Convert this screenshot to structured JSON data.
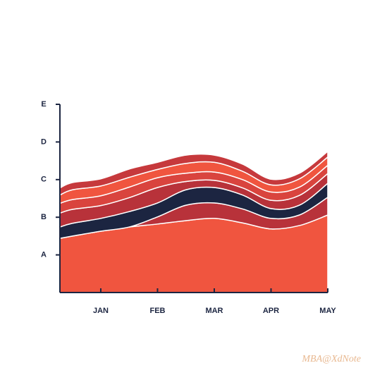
{
  "chart_data": {
    "type": "stacked_area",
    "x": [
      0.28,
      0.5,
      1,
      1.5,
      2,
      2.5,
      3,
      3.5,
      4,
      4.5,
      5
    ],
    "xlim": [
      0.28,
      5
    ],
    "xticks": [
      {
        "value": 1,
        "label": "JAN"
      },
      {
        "value": 2,
        "label": "FEB"
      },
      {
        "value": 3,
        "label": "MAR"
      },
      {
        "value": 4,
        "label": "APR"
      },
      {
        "value": 5,
        "label": "MAY"
      }
    ],
    "ylim": [
      0,
      5
    ],
    "yticks": [
      {
        "value": 1,
        "label": "A"
      },
      {
        "value": 2,
        "label": "B"
      },
      {
        "value": 3,
        "label": "C"
      },
      {
        "value": 4,
        "label": "D"
      },
      {
        "value": 5,
        "label": "E"
      }
    ],
    "series": [
      {
        "color": "#f0553f",
        "values": [
          1.44,
          1.5,
          1.63,
          1.74,
          1.82,
          1.91,
          1.97,
          1.85,
          1.69,
          1.78,
          2.06
        ]
      },
      {
        "color": "#b8323a",
        "values": [
          0,
          0,
          0,
          0,
          0.19,
          0.41,
          0.41,
          0.37,
          0.28,
          0.28,
          0.47
        ]
      },
      {
        "color": "#1c2541",
        "values": [
          0.3,
          0.34,
          0.34,
          0.41,
          0.37,
          0.41,
          0.41,
          0.37,
          0.26,
          0.26,
          0.37
        ]
      },
      {
        "color": "#b8323a",
        "values": [
          0.37,
          0.37,
          0.34,
          0.37,
          0.41,
          0.22,
          0.19,
          0.19,
          0.22,
          0.26,
          0.26
        ]
      },
      {
        "color": "#d9443e",
        "values": [
          0.26,
          0.26,
          0.26,
          0.28,
          0.26,
          0.22,
          0.22,
          0.22,
          0.22,
          0.22,
          0.22
        ]
      },
      {
        "color": "#f0553f",
        "values": [
          0.22,
          0.26,
          0.26,
          0.26,
          0.22,
          0.26,
          0.26,
          0.22,
          0.19,
          0.22,
          0.22
        ]
      },
      {
        "color": "#c6393c",
        "values": [
          0.19,
          0.19,
          0.19,
          0.22,
          0.19,
          0.22,
          0.19,
          0.19,
          0.15,
          0.15,
          0.15
        ]
      }
    ],
    "watermark": "MBA@XdNote"
  }
}
